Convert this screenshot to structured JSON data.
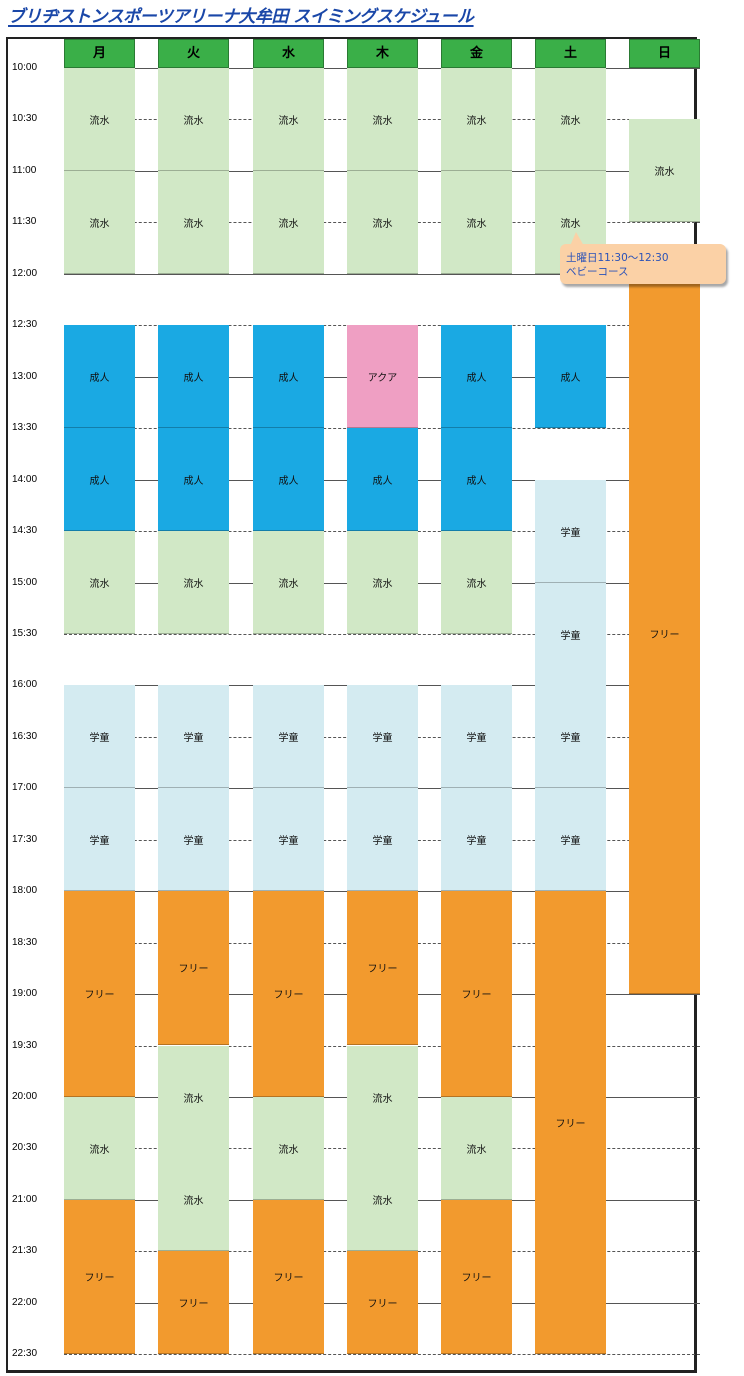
{
  "title": "ブリヂストンスポーツアリーナ大牟田 スイミングスケジュール",
  "days": [
    "月",
    "火",
    "水",
    "木",
    "金",
    "土",
    "日"
  ],
  "times": [
    "10:00",
    "10:30",
    "11:00",
    "11:30",
    "12:00",
    "12:30",
    "13:00",
    "13:30",
    "14:00",
    "14:30",
    "15:00",
    "15:30",
    "16:00",
    "16:30",
    "17:00",
    "17:30",
    "18:00",
    "18:30",
    "19:00",
    "19:30",
    "20:00",
    "20:30",
    "21:00",
    "21:30",
    "22:00",
    "22:30"
  ],
  "callout": {
    "line1": "土曜日11:30〜12:30",
    "line2": "ベビーコース"
  },
  "schedule": [
    [
      {
        "start": "10:00",
        "end": "11:00",
        "label": "流水",
        "type": "ryusui"
      },
      {
        "start": "11:00",
        "end": "12:00",
        "label": "流水",
        "type": "ryusui"
      },
      {
        "start": "12:30",
        "end": "13:30",
        "label": "成人",
        "type": "seijin"
      },
      {
        "start": "13:30",
        "end": "14:30",
        "label": "成人",
        "type": "seijin"
      },
      {
        "start": "14:30",
        "end": "15:30",
        "label": "流水",
        "type": "ryusui"
      },
      {
        "start": "16:00",
        "end": "17:00",
        "label": "学童",
        "type": "gakudo"
      },
      {
        "start": "17:00",
        "end": "18:00",
        "label": "学童",
        "type": "gakudo"
      },
      {
        "start": "18:00",
        "end": "20:00",
        "label": "フリー",
        "type": "free"
      },
      {
        "start": "20:00",
        "end": "21:00",
        "label": "流水",
        "type": "ryusui"
      },
      {
        "start": "21:00",
        "end": "22:30",
        "label": "フリー",
        "type": "free"
      }
    ],
    [
      {
        "start": "10:00",
        "end": "11:00",
        "label": "流水",
        "type": "ryusui"
      },
      {
        "start": "11:00",
        "end": "12:00",
        "label": "流水",
        "type": "ryusui"
      },
      {
        "start": "12:30",
        "end": "13:30",
        "label": "成人",
        "type": "seijin"
      },
      {
        "start": "13:30",
        "end": "14:30",
        "label": "成人",
        "type": "seijin"
      },
      {
        "start": "14:30",
        "end": "15:30",
        "label": "流水",
        "type": "ryusui"
      },
      {
        "start": "16:00",
        "end": "17:00",
        "label": "学童",
        "type": "gakudo"
      },
      {
        "start": "17:00",
        "end": "18:00",
        "label": "学童",
        "type": "gakudo"
      },
      {
        "start": "18:00",
        "end": "19:30",
        "label": "フリー",
        "type": "free"
      },
      {
        "start": "19:30",
        "end": "20:30",
        "label": "流水",
        "type": "ryusui"
      },
      {
        "start": "20:30",
        "end": "21:30",
        "label": "流水",
        "type": "ryusui"
      },
      {
        "start": "21:30",
        "end": "22:30",
        "label": "フリー",
        "type": "free"
      }
    ],
    [
      {
        "start": "10:00",
        "end": "11:00",
        "label": "流水",
        "type": "ryusui"
      },
      {
        "start": "11:00",
        "end": "12:00",
        "label": "流水",
        "type": "ryusui"
      },
      {
        "start": "12:30",
        "end": "13:30",
        "label": "成人",
        "type": "seijin"
      },
      {
        "start": "13:30",
        "end": "14:30",
        "label": "成人",
        "type": "seijin"
      },
      {
        "start": "14:30",
        "end": "15:30",
        "label": "流水",
        "type": "ryusui"
      },
      {
        "start": "16:00",
        "end": "17:00",
        "label": "学童",
        "type": "gakudo"
      },
      {
        "start": "17:00",
        "end": "18:00",
        "label": "学童",
        "type": "gakudo"
      },
      {
        "start": "18:00",
        "end": "20:00",
        "label": "フリー",
        "type": "free"
      },
      {
        "start": "20:00",
        "end": "21:00",
        "label": "流水",
        "type": "ryusui"
      },
      {
        "start": "21:00",
        "end": "22:30",
        "label": "フリー",
        "type": "free"
      }
    ],
    [
      {
        "start": "10:00",
        "end": "11:00",
        "label": "流水",
        "type": "ryusui"
      },
      {
        "start": "11:00",
        "end": "12:00",
        "label": "流水",
        "type": "ryusui"
      },
      {
        "start": "12:30",
        "end": "13:30",
        "label": "アクア",
        "type": "aqua"
      },
      {
        "start": "13:30",
        "end": "14:30",
        "label": "成人",
        "type": "seijin"
      },
      {
        "start": "14:30",
        "end": "15:30",
        "label": "流水",
        "type": "ryusui"
      },
      {
        "start": "16:00",
        "end": "17:00",
        "label": "学童",
        "type": "gakudo"
      },
      {
        "start": "17:00",
        "end": "18:00",
        "label": "学童",
        "type": "gakudo"
      },
      {
        "start": "18:00",
        "end": "19:30",
        "label": "フリー",
        "type": "free"
      },
      {
        "start": "19:30",
        "end": "20:30",
        "label": "流水",
        "type": "ryusui"
      },
      {
        "start": "20:30",
        "end": "21:30",
        "label": "流水",
        "type": "ryusui"
      },
      {
        "start": "21:30",
        "end": "22:30",
        "label": "フリー",
        "type": "free"
      }
    ],
    [
      {
        "start": "10:00",
        "end": "11:00",
        "label": "流水",
        "type": "ryusui"
      },
      {
        "start": "11:00",
        "end": "12:00",
        "label": "流水",
        "type": "ryusui"
      },
      {
        "start": "12:30",
        "end": "13:30",
        "label": "成人",
        "type": "seijin"
      },
      {
        "start": "13:30",
        "end": "14:30",
        "label": "成人",
        "type": "seijin"
      },
      {
        "start": "14:30",
        "end": "15:30",
        "label": "流水",
        "type": "ryusui"
      },
      {
        "start": "16:00",
        "end": "17:00",
        "label": "学童",
        "type": "gakudo"
      },
      {
        "start": "17:00",
        "end": "18:00",
        "label": "学童",
        "type": "gakudo"
      },
      {
        "start": "18:00",
        "end": "20:00",
        "label": "フリー",
        "type": "free"
      },
      {
        "start": "20:00",
        "end": "21:00",
        "label": "流水",
        "type": "ryusui"
      },
      {
        "start": "21:00",
        "end": "22:30",
        "label": "フリー",
        "type": "free"
      }
    ],
    [
      {
        "start": "10:00",
        "end": "11:00",
        "label": "流水",
        "type": "ryusui"
      },
      {
        "start": "11:00",
        "end": "12:00",
        "label": "流水",
        "type": "ryusui"
      },
      {
        "start": "12:30",
        "end": "13:30",
        "label": "成人",
        "type": "seijin"
      },
      {
        "start": "14:00",
        "end": "15:00",
        "label": "学童",
        "type": "gakudo"
      },
      {
        "start": "15:00",
        "end": "16:00",
        "label": "学童",
        "type": "gakudo"
      },
      {
        "start": "16:00",
        "end": "17:00",
        "label": "学童",
        "type": "gakudo"
      },
      {
        "start": "17:00",
        "end": "18:00",
        "label": "学童",
        "type": "gakudo"
      },
      {
        "start": "18:00",
        "end": "22:30",
        "label": "フリー",
        "type": "free"
      }
    ],
    [
      {
        "start": "10:30",
        "end": "11:30",
        "label": "流水",
        "type": "ryusui"
      },
      {
        "start": "12:00",
        "end": "19:00",
        "label": "フリー",
        "type": "free"
      }
    ]
  ],
  "colors": {
    "header": "#3aaf48",
    "ryusui": "#d1e8c6",
    "seijin": "#1aa9e3",
    "aqua": "#ef9fc3",
    "gakudo": "#d4ebf1",
    "free": "#f29a2e",
    "title": "#1a47a8"
  }
}
